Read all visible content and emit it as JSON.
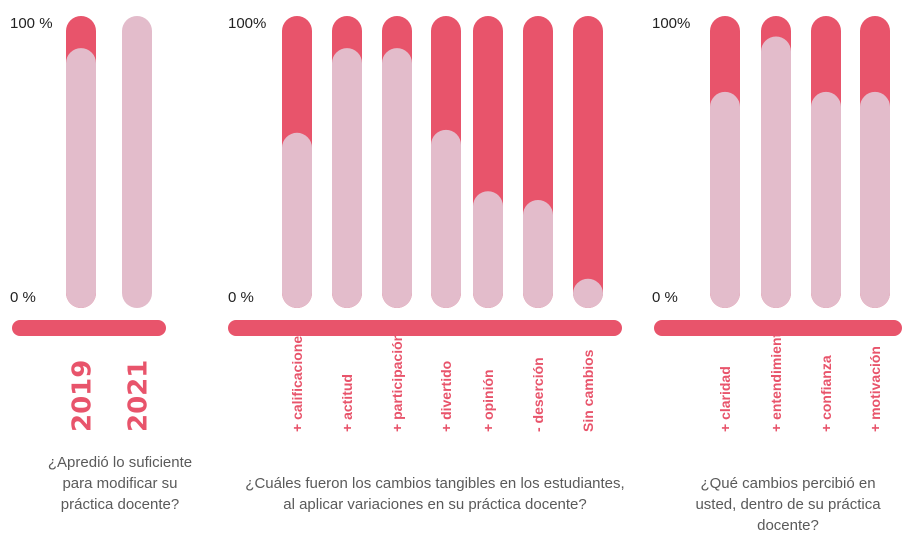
{
  "colors": {
    "top": "#e8546b",
    "bottom": "#e3bccb",
    "axis": "#e8546b",
    "text": "#222222",
    "question": "#5a5a5a"
  },
  "chart_data": [
    {
      "type": "bar",
      "stacked": true,
      "ymin_label": "0 %",
      "ymax_label": "100 %",
      "ylim": [
        0,
        100
      ],
      "categories": [
        "2019",
        "2021"
      ],
      "series": [
        {
          "values": [
            89,
            100
          ]
        },
        {
          "values": [
            11,
            0
          ]
        }
      ],
      "question": "¿Apredió lo suficiente para modificar su práctica docente?"
    },
    {
      "type": "bar",
      "stacked": true,
      "ymin_label": "0 %",
      "ymax_label": "100%",
      "ylim": [
        0,
        100
      ],
      "categories": [
        "+ calificaciones",
        "+ actitud",
        "+ participación",
        "+ divertido",
        "+ opinión",
        "- deserción",
        "Sin cambios"
      ],
      "series": [
        {
          "values": [
            60,
            89,
            89,
            61,
            40,
            37,
            10
          ]
        },
        {
          "values": [
            40,
            11,
            11,
            39,
            60,
            63,
            90
          ]
        }
      ],
      "question": "¿Cuáles fueron los cambios tangibles en los estudiantes, al aplicar variaciones en su práctica docente?"
    },
    {
      "type": "bar",
      "stacked": true,
      "ymin_label": "0 %",
      "ymax_label": "100%",
      "ylim": [
        0,
        100
      ],
      "categories": [
        "+ claridad",
        "+ entendimiento",
        "+ confianza",
        "+ motivación"
      ],
      "series": [
        {
          "values": [
            74,
            93,
            74,
            74
          ]
        },
        {
          "values": [
            26,
            7,
            26,
            26
          ]
        }
      ],
      "question": "¿Qué cambios percibió en usted, dentro de su práctica docente?"
    }
  ]
}
